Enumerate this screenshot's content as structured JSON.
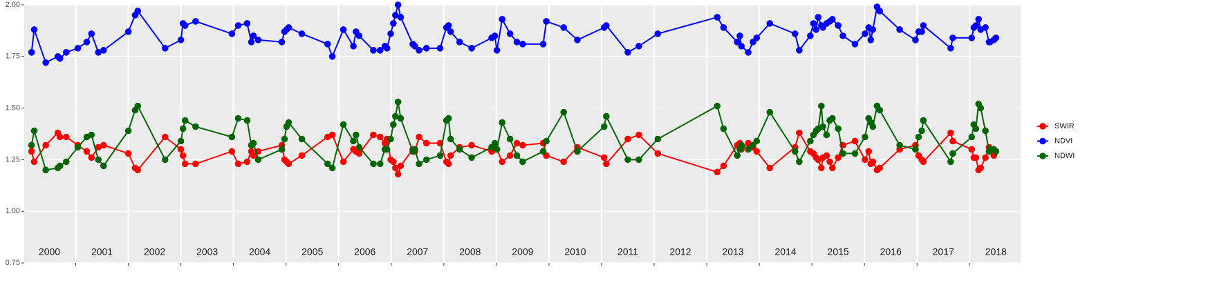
{
  "chart_data": {
    "type": "line",
    "x": [
      2000.16,
      2000.21,
      2000.43,
      2000.66,
      2000.7,
      2000.82,
      2001.04,
      2001.21,
      2001.3,
      2001.43,
      2001.53,
      2002.0,
      2002.13,
      2002.18,
      2002.7,
      2003.0,
      2003.04,
      2003.08,
      2003.28,
      2003.97,
      2004.09,
      2004.26,
      2004.34,
      2004.38,
      2004.47,
      2004.92,
      2004.97,
      2005.01,
      2005.05,
      2005.3,
      2005.79,
      2005.88,
      2006.09,
      2006.28,
      2006.33,
      2006.39,
      2006.66,
      2006.79,
      2006.88,
      2006.92,
      2006.99,
      2007.04,
      2007.08,
      2007.13,
      2007.18,
      2007.41,
      2007.45,
      2007.53,
      2007.67,
      2007.93,
      2008.05,
      2008.09,
      2008.13,
      2008.3,
      2008.53,
      2008.91,
      2008.97,
      2009.01,
      2009.11,
      2009.26,
      2009.39,
      2009.5,
      2009.89,
      2009.95,
      2010.28,
      2010.54,
      2011.05,
      2011.09,
      2011.5,
      2011.71,
      2012.07,
      2013.2,
      2013.32,
      2013.58,
      2013.63,
      2013.66,
      2013.79,
      2013.88,
      2013.95,
      2014.2,
      2014.68,
      2014.76,
      2014.97,
      2015.03,
      2015.08,
      2015.12,
      2015.18,
      2015.21,
      2015.28,
      2015.34,
      2015.39,
      2015.5,
      2015.59,
      2015.82,
      2016.01,
      2016.08,
      2016.12,
      2016.16,
      2016.24,
      2016.29,
      2016.67,
      2016.97,
      2017.03,
      2017.09,
      2017.12,
      2017.64,
      2017.68,
      2018.04,
      2018.08,
      2018.12,
      2018.17,
      2018.21,
      2018.3,
      2018.37,
      2018.39,
      2018.46,
      2018.5
    ],
    "series": [
      {
        "name": "SWIR",
        "color": "#ff0000",
        "values": [
          1.29,
          1.24,
          1.32,
          1.38,
          1.36,
          1.36,
          1.32,
          1.29,
          1.26,
          1.31,
          1.32,
          1.28,
          1.21,
          1.2,
          1.36,
          1.3,
          1.27,
          1.23,
          1.23,
          1.29,
          1.23,
          1.24,
          1.29,
          1.27,
          1.29,
          1.32,
          1.25,
          1.24,
          1.23,
          1.27,
          1.36,
          1.37,
          1.24,
          1.3,
          1.29,
          1.28,
          1.37,
          1.36,
          1.33,
          1.35,
          1.25,
          1.24,
          1.21,
          1.18,
          1.22,
          1.3,
          1.29,
          1.36,
          1.33,
          1.33,
          1.24,
          1.23,
          1.27,
          1.31,
          1.32,
          1.29,
          1.3,
          1.3,
          1.24,
          1.27,
          1.33,
          1.32,
          1.33,
          1.27,
          1.24,
          1.31,
          1.26,
          1.23,
          1.35,
          1.37,
          1.28,
          1.19,
          1.22,
          1.32,
          1.33,
          1.3,
          1.33,
          1.31,
          1.29,
          1.21,
          1.31,
          1.38,
          1.29,
          1.28,
          1.26,
          1.25,
          1.21,
          1.26,
          1.27,
          1.24,
          1.21,
          1.26,
          1.32,
          1.34,
          1.25,
          1.29,
          1.23,
          1.24,
          1.2,
          1.21,
          1.3,
          1.32,
          1.27,
          1.25,
          1.24,
          1.38,
          1.34,
          1.3,
          1.26,
          1.26,
          1.2,
          1.21,
          1.26,
          1.31,
          1.3,
          1.27,
          1.29
        ]
      },
      {
        "name": "NDVI",
        "color": "#0000ff",
        "values": [
          1.77,
          1.88,
          1.72,
          1.75,
          1.74,
          1.77,
          1.79,
          1.82,
          1.86,
          1.77,
          1.78,
          1.87,
          1.95,
          1.97,
          1.79,
          1.83,
          1.91,
          1.9,
          1.92,
          1.86,
          1.9,
          1.91,
          1.82,
          1.85,
          1.83,
          1.82,
          1.87,
          1.88,
          1.89,
          1.86,
          1.81,
          1.75,
          1.88,
          1.8,
          1.87,
          1.85,
          1.78,
          1.78,
          1.8,
          1.79,
          1.86,
          1.91,
          1.95,
          2.0,
          1.94,
          1.81,
          1.8,
          1.78,
          1.79,
          1.79,
          1.89,
          1.9,
          1.87,
          1.82,
          1.79,
          1.84,
          1.85,
          1.78,
          1.93,
          1.86,
          1.82,
          1.81,
          1.81,
          1.92,
          1.89,
          1.83,
          1.89,
          1.9,
          1.77,
          1.8,
          1.86,
          1.94,
          1.89,
          1.82,
          1.85,
          1.8,
          1.77,
          1.82,
          1.84,
          1.91,
          1.86,
          1.78,
          1.85,
          1.91,
          1.88,
          1.94,
          1.9,
          1.89,
          1.91,
          1.92,
          1.93,
          1.9,
          1.85,
          1.81,
          1.86,
          1.89,
          1.83,
          1.88,
          1.99,
          1.97,
          1.88,
          1.83,
          1.87,
          1.87,
          1.9,
          1.79,
          1.84,
          1.84,
          1.89,
          1.9,
          1.93,
          1.88,
          1.89,
          1.82,
          1.82,
          1.83,
          1.84
        ]
      },
      {
        "name": "NDWI",
        "color": "#006400",
        "values": [
          1.32,
          1.39,
          1.2,
          1.21,
          1.22,
          1.24,
          1.31,
          1.36,
          1.37,
          1.25,
          1.22,
          1.39,
          1.49,
          1.51,
          1.25,
          1.34,
          1.4,
          1.44,
          1.41,
          1.36,
          1.45,
          1.44,
          1.32,
          1.33,
          1.25,
          1.3,
          1.35,
          1.41,
          1.43,
          1.35,
          1.23,
          1.21,
          1.42,
          1.34,
          1.37,
          1.31,
          1.23,
          1.23,
          1.3,
          1.3,
          1.35,
          1.42,
          1.46,
          1.53,
          1.45,
          1.29,
          1.3,
          1.23,
          1.25,
          1.27,
          1.44,
          1.45,
          1.35,
          1.3,
          1.26,
          1.31,
          1.33,
          1.3,
          1.43,
          1.35,
          1.27,
          1.24,
          1.29,
          1.34,
          1.48,
          1.29,
          1.41,
          1.46,
          1.25,
          1.25,
          1.35,
          1.51,
          1.4,
          1.27,
          1.3,
          1.32,
          1.3,
          1.32,
          1.34,
          1.48,
          1.29,
          1.24,
          1.34,
          1.37,
          1.39,
          1.4,
          1.51,
          1.41,
          1.37,
          1.44,
          1.45,
          1.4,
          1.28,
          1.28,
          1.36,
          1.45,
          1.43,
          1.41,
          1.51,
          1.49,
          1.32,
          1.3,
          1.36,
          1.39,
          1.44,
          1.24,
          1.28,
          1.36,
          1.42,
          1.4,
          1.52,
          1.5,
          1.39,
          1.29,
          1.3,
          1.3,
          1.29
        ]
      }
    ],
    "xlim": [
      2000.02,
      2018.97
    ],
    "xticks": [
      {
        "value": 2000.5,
        "label": "2000"
      },
      {
        "value": 2001.5,
        "label": "2001"
      },
      {
        "value": 2002.5,
        "label": "2002"
      },
      {
        "value": 2003.5,
        "label": "2003"
      },
      {
        "value": 2004.5,
        "label": "2004"
      },
      {
        "value": 2005.5,
        "label": "2005"
      },
      {
        "value": 2006.5,
        "label": "2006"
      },
      {
        "value": 2007.5,
        "label": "2007"
      },
      {
        "value": 2008.5,
        "label": "2008"
      },
      {
        "value": 2009.5,
        "label": "2009"
      },
      {
        "value": 2010.5,
        "label": "2010"
      },
      {
        "value": 2011.5,
        "label": "2011"
      },
      {
        "value": 2012.5,
        "label": "2012"
      },
      {
        "value": 2013.5,
        "label": "2013"
      },
      {
        "value": 2014.5,
        "label": "2014"
      },
      {
        "value": 2015.5,
        "label": "2015"
      },
      {
        "value": 2016.5,
        "label": "2016"
      },
      {
        "value": 2017.5,
        "label": "2017"
      },
      {
        "value": 2018.5,
        "label": "2018"
      }
    ],
    "xgrid": [
      2001,
      2002,
      2003,
      2004,
      2005,
      2006,
      2007,
      2008,
      2009,
      2010,
      2011,
      2012,
      2013,
      2014,
      2015,
      2016,
      2017,
      2018
    ],
    "ylim": [
      0.75,
      2.0
    ],
    "yticks": [
      0.75,
      {
        "value": 1,
        "label": "1.00"
      },
      1.25,
      {
        "value": 1.5,
        "label": "1.50"
      },
      1.75,
      {
        "value": 2,
        "label": "2.00"
      }
    ],
    "grid": true,
    "legend": "right"
  }
}
